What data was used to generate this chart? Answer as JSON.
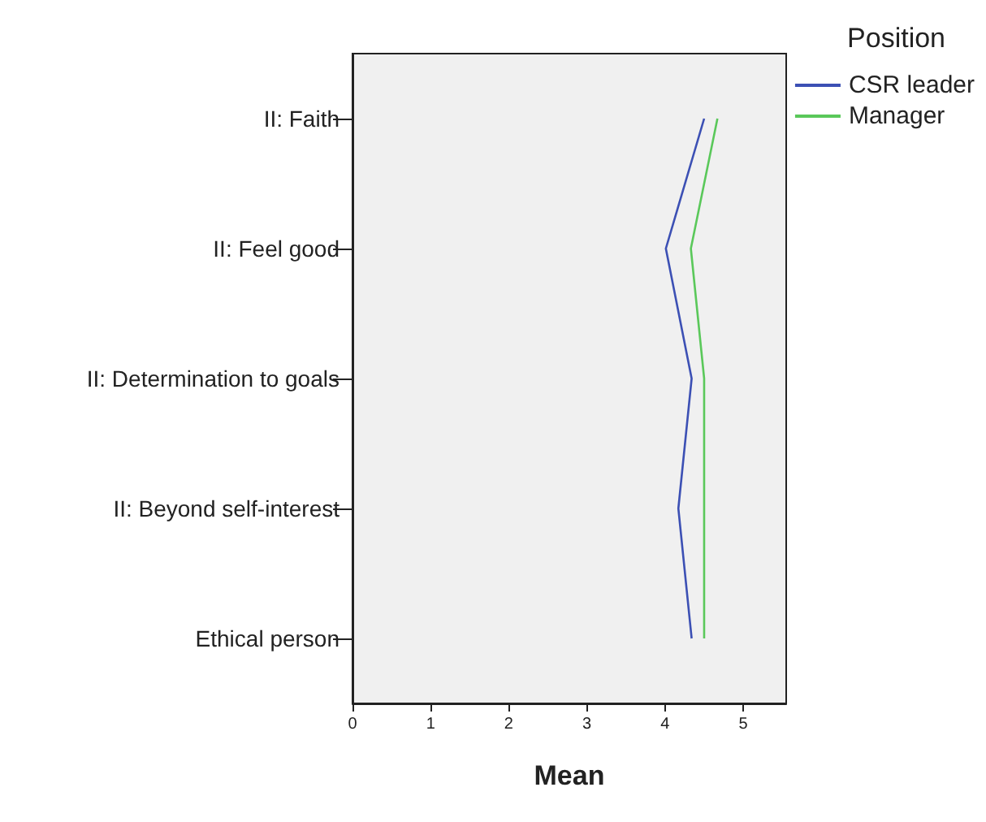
{
  "chart_data": {
    "type": "line",
    "orientation": "horizontal",
    "xlabel": "Mean",
    "legend_title": "Position",
    "legend": "top right",
    "grid": false,
    "marker": "none",
    "line_style": "solid",
    "categories": [
      "II: Faith",
      "II: Feel good",
      "II: Determination to goals",
      "II: Beyond self-interest",
      "Ethical person"
    ],
    "xlim": [
      0,
      5.55
    ],
    "xticks": [
      0,
      1,
      2,
      3,
      4,
      5
    ],
    "series": [
      {
        "name": "CSR leader",
        "color": "#3c50b4",
        "values": [
          4.5,
          4.01,
          4.34,
          4.17,
          4.34
        ]
      },
      {
        "name": "Manager",
        "color": "#5ac85a",
        "values": [
          4.67,
          4.33,
          4.5,
          4.5,
          4.5
        ]
      }
    ]
  }
}
